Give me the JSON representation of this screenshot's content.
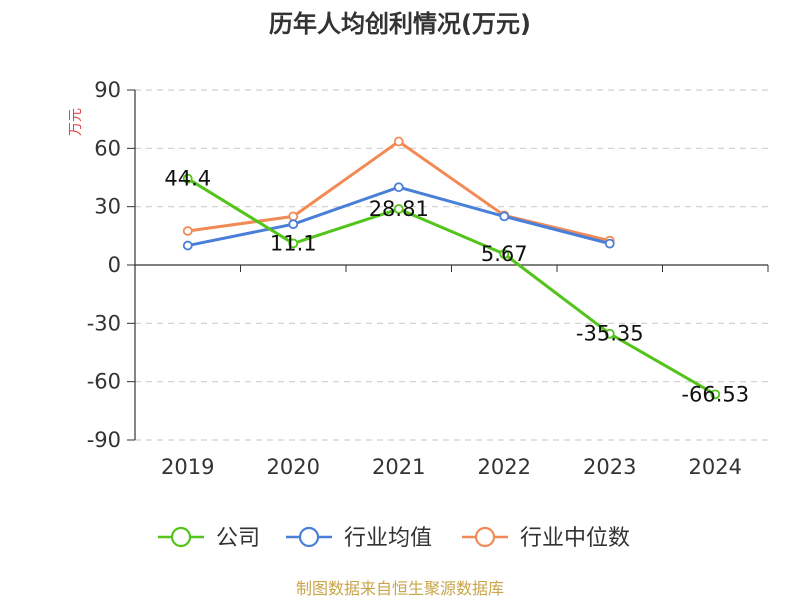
{
  "chart_data": {
    "type": "line",
    "title": "历年人均创利情况(万元)",
    "ylabel": "万元",
    "xlabel": "",
    "categories": [
      "2019",
      "2020",
      "2021",
      "2022",
      "2023",
      "2024"
    ],
    "ylim": [
      -90,
      90
    ],
    "yticks": [
      90,
      60,
      30,
      0,
      -30,
      -60,
      -90
    ],
    "grid": true,
    "legend_position": "bottom",
    "series": [
      {
        "name": "公司",
        "color": "#52c41a",
        "values": [
          44.4,
          11.1,
          28.81,
          5.67,
          -35.35,
          -66.53
        ],
        "labels": [
          "44.4",
          "11.1",
          "28.81",
          "5.67",
          "-35.35",
          "-66.53"
        ]
      },
      {
        "name": "行业均值",
        "color": "#4a7fd8",
        "values": [
          10,
          21,
          40,
          25,
          11,
          null
        ]
      },
      {
        "name": "行业中位数",
        "color": "#f28a55",
        "values": [
          17.5,
          25,
          63.5,
          25.5,
          12.5,
          null
        ]
      }
    ],
    "source": "制图数据来自恒生聚源数据库"
  }
}
